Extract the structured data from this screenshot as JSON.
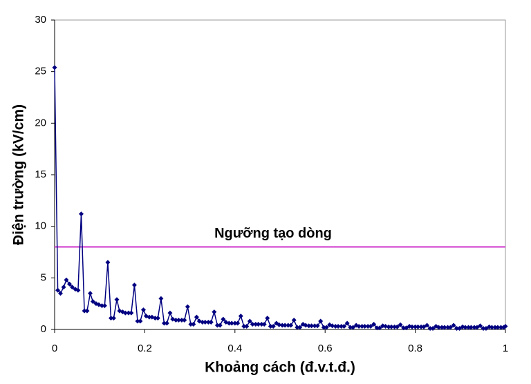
{
  "chart_data": {
    "type": "line",
    "xlabel": "Khoảng cách (đ.v.t.đ.)",
    "ylabel": "Điện trường (kV/cm)",
    "x": [
      0,
      0.007,
      0.013,
      0.02,
      0.026,
      0.033,
      0.039,
      0.046,
      0.052,
      0.059,
      0.066,
      0.072,
      0.079,
      0.085,
      0.092,
      0.098,
      0.105,
      0.111,
      0.118,
      0.125,
      0.131,
      0.138,
      0.144,
      0.151,
      0.157,
      0.164,
      0.17,
      0.177,
      0.184,
      0.19,
      0.197,
      0.203,
      0.21,
      0.216,
      0.223,
      0.229,
      0.236,
      0.243,
      0.249,
      0.256,
      0.262,
      0.269,
      0.275,
      0.282,
      0.288,
      0.295,
      0.302,
      0.308,
      0.315,
      0.321,
      0.328,
      0.334,
      0.341,
      0.347,
      0.354,
      0.361,
      0.367,
      0.374,
      0.38,
      0.387,
      0.393,
      0.4,
      0.406,
      0.413,
      0.42,
      0.426,
      0.433,
      0.439,
      0.446,
      0.452,
      0.459,
      0.465,
      0.472,
      0.479,
      0.485,
      0.492,
      0.498,
      0.505,
      0.511,
      0.518,
      0.524,
      0.531,
      0.538,
      0.544,
      0.551,
      0.557,
      0.564,
      0.57,
      0.577,
      0.583,
      0.59,
      0.597,
      0.603,
      0.61,
      0.616,
      0.623,
      0.629,
      0.636,
      0.642,
      0.649,
      0.656,
      0.662,
      0.669,
      0.675,
      0.682,
      0.688,
      0.695,
      0.701,
      0.708,
      0.715,
      0.721,
      0.728,
      0.734,
      0.741,
      0.747,
      0.754,
      0.76,
      0.767,
      0.774,
      0.78,
      0.787,
      0.793,
      0.8,
      0.806,
      0.813,
      0.819,
      0.826,
      0.833,
      0.839,
      0.846,
      0.852,
      0.859,
      0.865,
      0.872,
      0.878,
      0.885,
      0.892,
      0.898,
      0.905,
      0.911,
      0.918,
      0.924,
      0.931,
      0.937,
      0.944,
      0.951,
      0.957,
      0.964,
      0.97,
      0.977,
      0.983,
      0.99,
      0.996,
      1.0
    ],
    "series": [
      {
        "color": "#000080",
        "values": [
          25.4,
          3.8,
          3.5,
          4.1,
          4.8,
          4.4,
          4.1,
          3.9,
          3.8,
          11.2,
          1.8,
          1.8,
          3.5,
          2.7,
          2.5,
          2.4,
          2.3,
          2.3,
          6.5,
          1.1,
          1.1,
          2.9,
          1.8,
          1.7,
          1.6,
          1.6,
          1.6,
          4.3,
          0.8,
          0.8,
          1.9,
          1.3,
          1.2,
          1.2,
          1.1,
          1.1,
          3.0,
          0.6,
          0.6,
          1.6,
          1.0,
          0.9,
          0.9,
          0.9,
          0.9,
          2.2,
          0.5,
          0.5,
          1.2,
          0.8,
          0.7,
          0.7,
          0.7,
          0.7,
          1.7,
          0.4,
          0.4,
          1.0,
          0.7,
          0.6,
          0.6,
          0.6,
          0.6,
          1.3,
          0.3,
          0.3,
          0.8,
          0.5,
          0.5,
          0.5,
          0.5,
          0.5,
          1.1,
          0.3,
          0.3,
          0.6,
          0.45,
          0.4,
          0.4,
          0.4,
          0.4,
          0.9,
          0.2,
          0.2,
          0.5,
          0.4,
          0.35,
          0.35,
          0.35,
          0.35,
          0.8,
          0.2,
          0.2,
          0.45,
          0.35,
          0.3,
          0.3,
          0.3,
          0.3,
          0.6,
          0.2,
          0.2,
          0.4,
          0.3,
          0.3,
          0.3,
          0.3,
          0.3,
          0.5,
          0.15,
          0.15,
          0.35,
          0.3,
          0.25,
          0.25,
          0.25,
          0.25,
          0.45,
          0.15,
          0.15,
          0.3,
          0.25,
          0.25,
          0.25,
          0.25,
          0.25,
          0.4,
          0.1,
          0.1,
          0.3,
          0.2,
          0.2,
          0.2,
          0.2,
          0.2,
          0.4,
          0.1,
          0.1,
          0.25,
          0.2,
          0.2,
          0.2,
          0.2,
          0.2,
          0.35,
          0.1,
          0.1,
          0.25,
          0.2,
          0.2,
          0.2,
          0.2,
          0.2,
          0.3
        ]
      }
    ],
    "threshold": {
      "value": 8,
      "label": "Ngưỡng tạo dòng",
      "color": "#cc33cc"
    },
    "xlim": [
      0,
      1
    ],
    "xticks": [
      0,
      0.2,
      0.4,
      0.6,
      0.8,
      1
    ],
    "ylim": [
      0,
      30
    ],
    "yticks": [
      0,
      5,
      10,
      15,
      20,
      25,
      30
    ],
    "grid": false
  }
}
